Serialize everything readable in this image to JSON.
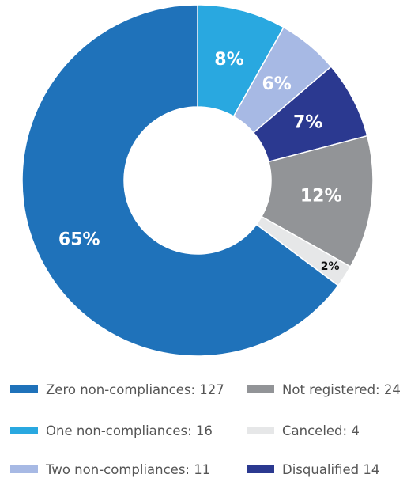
{
  "chart_data": {
    "type": "pie",
    "donut": true,
    "title": "",
    "slices": [
      {
        "name": "One non-compliances",
        "value": 16,
        "percent_label": "8%",
        "color": "#29A8E0",
        "legend_text": "One non-compliances: 16"
      },
      {
        "name": "Two non-compliances",
        "value": 11,
        "percent_label": "6%",
        "color": "#A7B9E4",
        "legend_text": "Two non-compliances: 11"
      },
      {
        "name": "Disqualified",
        "value": 14,
        "percent_label": "7%",
        "color": "#2B3990",
        "legend_text": "Disqualified 14"
      },
      {
        "name": "Not registered",
        "value": 24,
        "percent_label": "12%",
        "color": "#929497",
        "legend_text": "Not registered: 24"
      },
      {
        "name": "Canceled",
        "value": 4,
        "percent_label": "2%",
        "color": "#E6E7E8",
        "legend_text": "Canceled: 4"
      },
      {
        "name": "Zero non-compliances",
        "value": 127,
        "percent_label": "65%",
        "color": "#1F72BA",
        "legend_text": "Zero non-compliances: 127"
      }
    ],
    "legend_placement": "bottom"
  }
}
